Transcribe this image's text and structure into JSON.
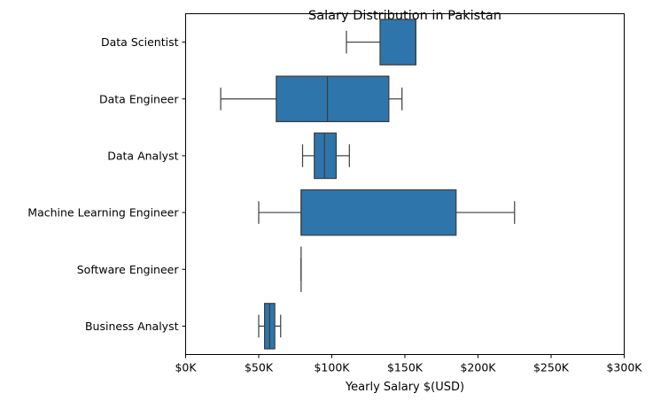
{
  "chart_data": {
    "type": "boxplot",
    "orientation": "horizontal",
    "title": "Salary Distribution in Pakistan",
    "xlabel": "Yearly Salary $(USD)",
    "ylabel": "",
    "xlim": [
      0,
      300000
    ],
    "x_ticks": [
      {
        "value": 0,
        "label": "$0K"
      },
      {
        "value": 50000,
        "label": "$50K"
      },
      {
        "value": 100000,
        "label": "$100K"
      },
      {
        "value": 150000,
        "label": "$150K"
      },
      {
        "value": 200000,
        "label": "$200K"
      },
      {
        "value": 250000,
        "label": "$250K"
      },
      {
        "value": 300000,
        "label": "$300K"
      }
    ],
    "grid": false,
    "legend": "none",
    "box_color": "#2e75ab",
    "line_color": "#3d3d3d",
    "categories": [
      "Data Scientist",
      "Data Engineer",
      "Data Analyst",
      "Machine Learning Engineer",
      "Software Engineer",
      "Business Analyst"
    ],
    "boxes": [
      {
        "category": "Data Scientist",
        "whisker_low": 110000,
        "q1": 133000,
        "median": 157500,
        "q3": 157500,
        "whisker_high": 157500
      },
      {
        "category": "Data Engineer",
        "whisker_low": 24000,
        "q1": 62000,
        "median": 97000,
        "q3": 139000,
        "whisker_high": 148000
      },
      {
        "category": "Data Analyst",
        "whisker_low": 80000,
        "q1": 88000,
        "median": 95000,
        "q3": 103000,
        "whisker_high": 112000
      },
      {
        "category": "Machine Learning Engineer",
        "whisker_low": 50000,
        "q1": 79000,
        "median": 79000,
        "q3": 185000,
        "whisker_high": 225000
      },
      {
        "category": "Software Engineer",
        "whisker_low": 79000,
        "q1": 79000,
        "median": 79000,
        "q3": 79000,
        "whisker_high": 79000
      },
      {
        "category": "Business Analyst",
        "whisker_low": 50000,
        "q1": 54000,
        "median": 57500,
        "q3": 61000,
        "whisker_high": 65000
      }
    ]
  }
}
